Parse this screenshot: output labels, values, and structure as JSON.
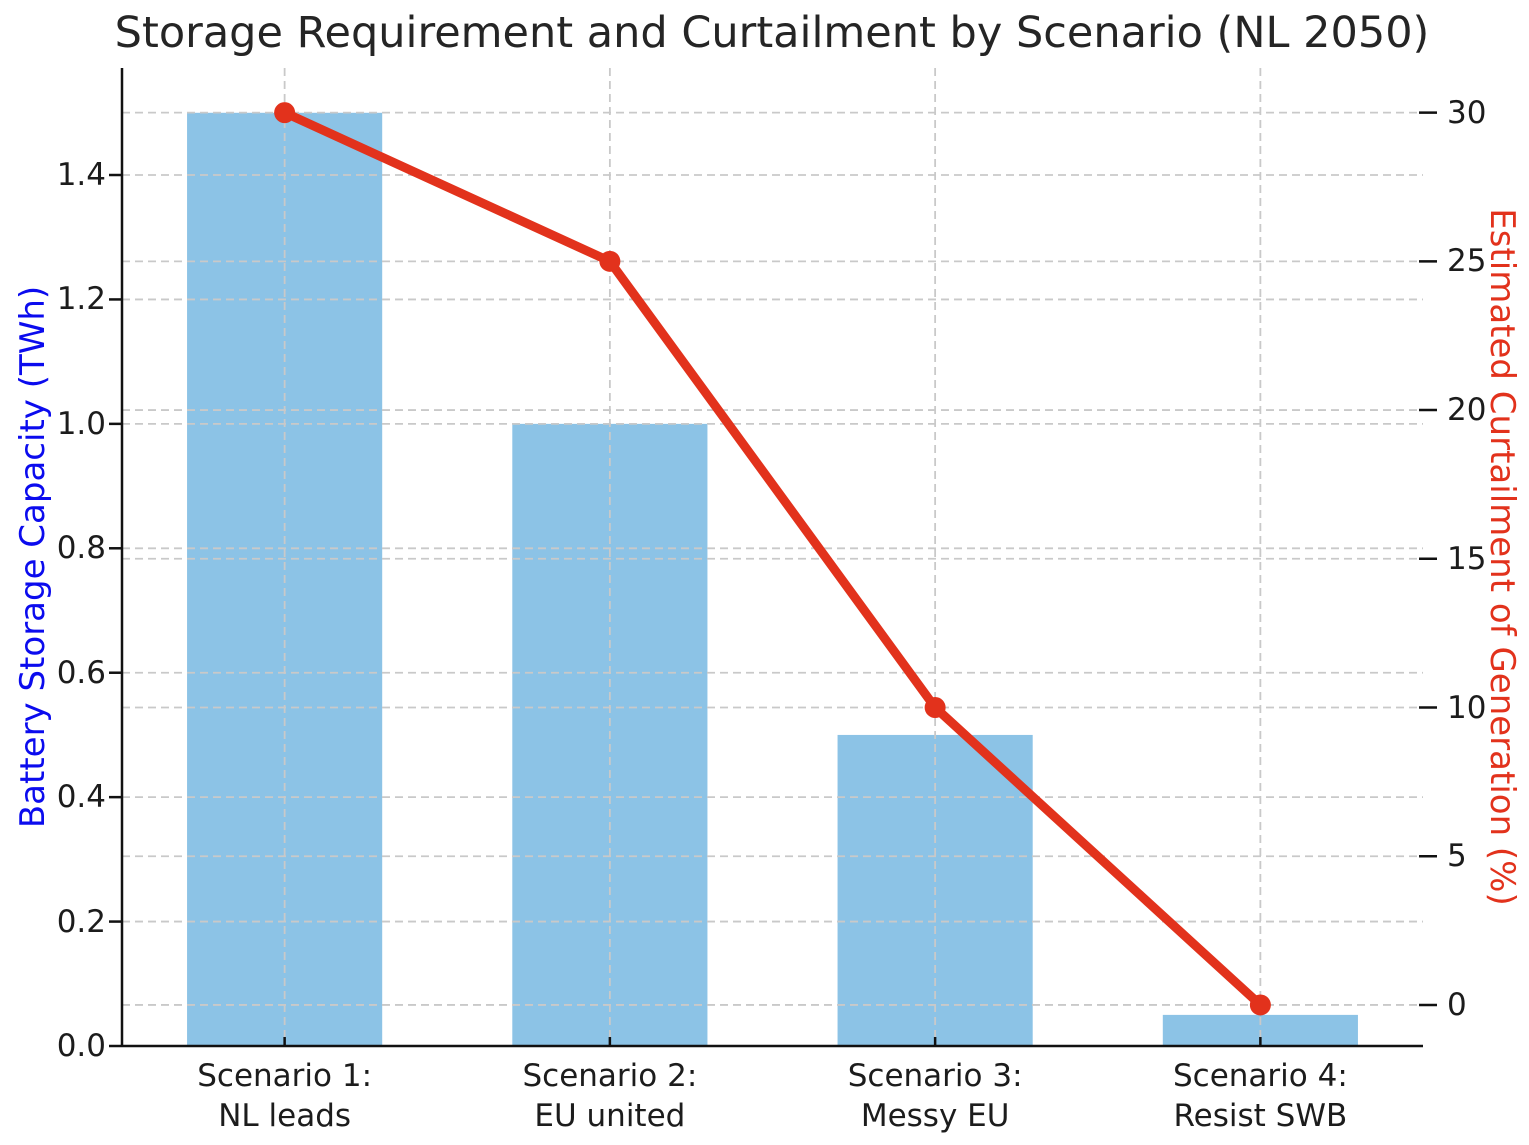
{
  "chart_data": {
    "type": "bar",
    "title": "Storage Requirement and Curtailment by Scenario (NL 2050)",
    "categories": [
      "Scenario 1:\nNL leads",
      "Scenario 2:\nEU united",
      "Scenario 3:\nMessy EU",
      "Scenario 4:\nResist SWB"
    ],
    "series": [
      {
        "name": "Battery Storage Capacity (TWh)",
        "type": "bar",
        "axis": "left",
        "color": "#8CC3E6",
        "values": [
          1.5,
          1.0,
          0.5,
          0.05
        ]
      },
      {
        "name": "Estimated Curtailment of Generation (%)",
        "type": "line",
        "axis": "right",
        "color": "#E2321C",
        "marker": "circle",
        "values": [
          30,
          25,
          10,
          0
        ]
      }
    ],
    "left_axis": {
      "label": "Battery Storage Capacity (TWh)",
      "color": "#0B0BEE",
      "ticks": [
        0,
        0.2,
        0.4,
        0.6,
        0.8,
        1.0,
        1.2,
        1.4
      ],
      "tick_labels": [
        "0.0",
        "0.2",
        "0.4",
        "0.6",
        "0.8",
        "1.0",
        "1.2",
        "1.4"
      ],
      "range": [
        0,
        1.572
      ]
    },
    "right_axis": {
      "label": "Estimated Curtailment of Generation (%)",
      "color": "#E2321C",
      "ticks": [
        0,
        5,
        10,
        15,
        20,
        25,
        30
      ],
      "tick_labels": [
        "0",
        "5",
        "10",
        "15",
        "20",
        "25",
        "30"
      ],
      "range": [
        -1.38,
        31.5
      ]
    },
    "grid": true,
    "grid_color": "#C9C9C9",
    "legend_position": "none",
    "bar_width_frac": 0.6
  }
}
